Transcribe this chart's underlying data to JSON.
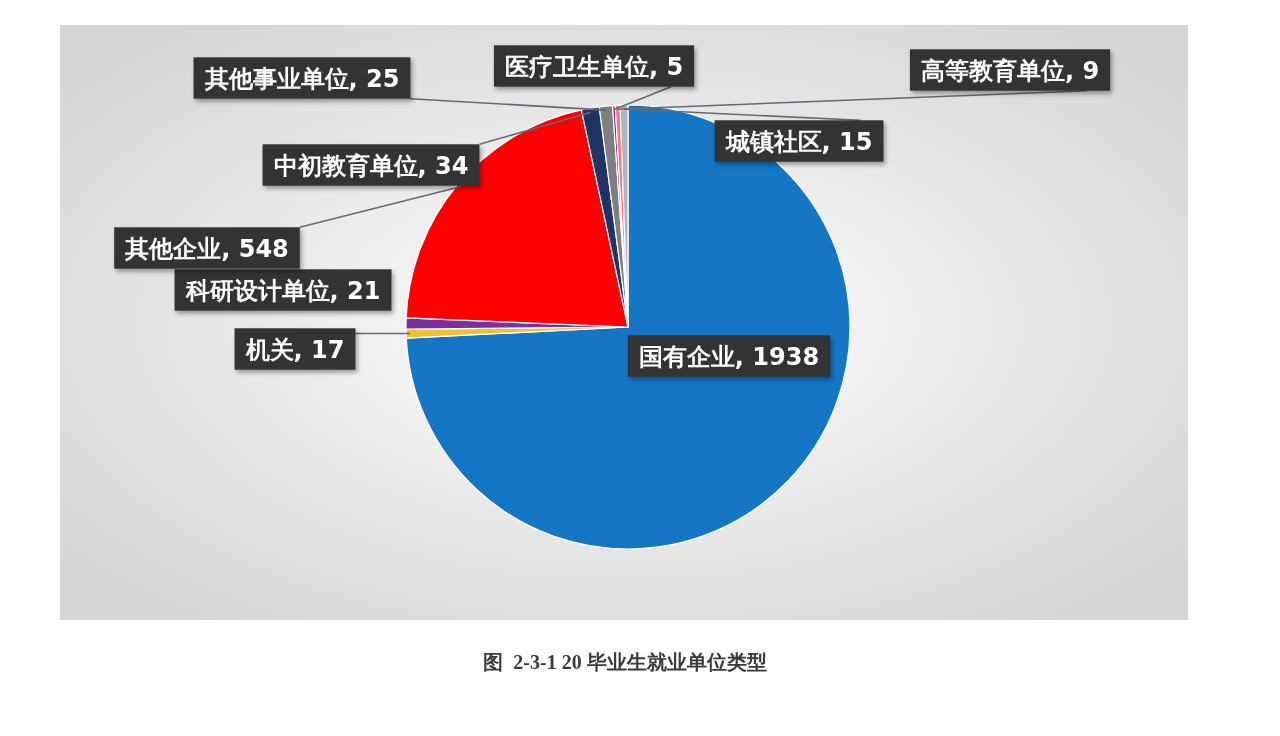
{
  "chart_data": {
    "type": "pie",
    "title": "图  2-3-1 20 毕业生就业单位类型",
    "categories": [
      "国有企业",
      "机关",
      "科研设计单位",
      "其他企业",
      "中初教育单位",
      "其他事业单位",
      "医疗卫生单位",
      "高等教育单位",
      "城镇社区"
    ],
    "values": [
      1938,
      17,
      21,
      548,
      34,
      25,
      5,
      9,
      15
    ],
    "value_labels": [
      ", 1938",
      ", 17",
      ", 21",
      ", 548",
      ", 34",
      ", 25",
      ", 5",
      ", 9",
      ", 15"
    ],
    "colors": [
      "#1576c6",
      "#f0c030",
      "#7a2fa0",
      "#fe0000",
      "#1f3464",
      "#7f7f82",
      "#6b2d90",
      "#ff7080",
      "#b4b4bc"
    ]
  }
}
